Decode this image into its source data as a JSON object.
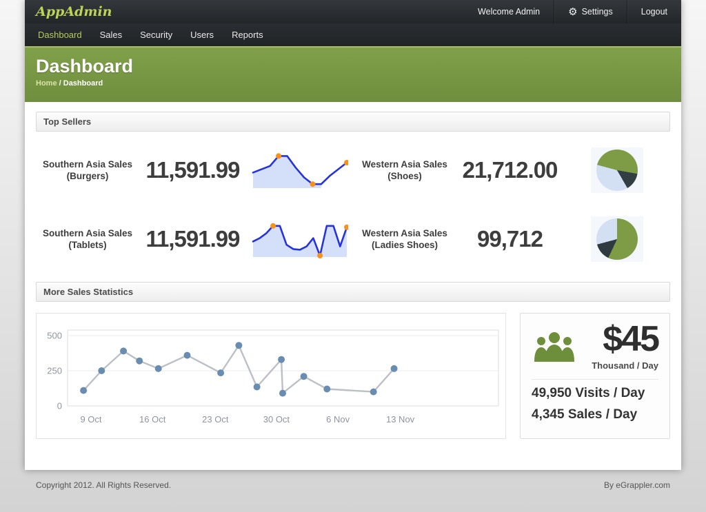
{
  "topbar": {
    "logo": "AppAdmin",
    "welcome": "Welcome Admin",
    "settings": "Settings",
    "logout": "Logout"
  },
  "nav": {
    "items": [
      {
        "label": "Dashboard",
        "active": true
      },
      {
        "label": "Sales",
        "active": false
      },
      {
        "label": "Security",
        "active": false
      },
      {
        "label": "Users",
        "active": false
      },
      {
        "label": "Reports",
        "active": false
      }
    ]
  },
  "hero": {
    "title": "Dashboard",
    "breadcrumb": {
      "home": "Home",
      "separator": "/",
      "current": "Dashboard"
    }
  },
  "sections": {
    "top_sellers": "Top Sellers",
    "more_stats": "More Sales Statistics"
  },
  "stats": [
    {
      "label_line1": "Southern Asia Sales",
      "label_line2": "(Burgers)",
      "value": "11,591.99",
      "chart_id": "burgers_sparkline"
    },
    {
      "label_line1": "Western Asia Sales",
      "label_line2": "(Shoes)",
      "value": "21,712.00",
      "chart_id": "shoes_pie"
    },
    {
      "label_line1": "Southern Asia Sales",
      "label_line2": "(Tablets)",
      "value": "11,591.99",
      "chart_id": "tablets_sparkline"
    },
    {
      "label_line1": "Western Asia Sales",
      "label_line2": "(Ladies Shoes)",
      "value": "99,712",
      "chart_id": "ladies_shoes_pie"
    }
  ],
  "chart_data": [
    {
      "id": "burgers_sparkline",
      "type": "area",
      "title": "Southern Asia Sales (Burgers) trend",
      "values": [
        45,
        55,
        65,
        95,
        95,
        60,
        30,
        10,
        10,
        35,
        55,
        75
      ],
      "dot_indices": [
        3,
        7,
        11
      ],
      "fill_to": 8,
      "line_color": "#2433dd",
      "dot_color": "#f5921e",
      "fill_color": "#cfdcf8"
    },
    {
      "id": "shoes_pie",
      "type": "pie",
      "title": "Western Asia Sales (Shoes) share",
      "from_deg": 285,
      "slices": [
        {
          "name": "green",
          "color": "#7d9c45",
          "deg": 175
        },
        {
          "name": "dark",
          "color": "#333d44",
          "deg": 50
        },
        {
          "name": "light-blue",
          "color": "#d3e0f4",
          "deg": 135
        }
      ]
    },
    {
      "id": "tablets_sparkline",
      "type": "area",
      "title": "Southern Asia Sales (Tablets) trend",
      "values": [
        45,
        55,
        70,
        92,
        92,
        35,
        22,
        20,
        30,
        55,
        2,
        92,
        92,
        30,
        88
      ],
      "dot_indices": [
        3,
        10,
        14
      ],
      "line_color": "#2433dd",
      "dot_color": "#f5921e",
      "fill_color": "#cfdcf8"
    },
    {
      "id": "ladies_shoes_pie",
      "type": "pie",
      "title": "Western Asia Sales (Ladies Shoes) share",
      "from_deg": 0,
      "slices": [
        {
          "name": "green",
          "color": "#7d9c45",
          "deg": 205
        },
        {
          "name": "dark",
          "color": "#2e3940",
          "deg": 50
        },
        {
          "name": "light-blue",
          "color": "#d3e0f4",
          "deg": 105
        }
      ]
    },
    {
      "id": "daily_sales_line",
      "type": "line",
      "title": "More Sales Statistics",
      "x_percent": [
        3.7,
        7.9,
        13.0,
        16.7,
        21.1,
        27.8,
        35.6,
        39.8,
        44.0,
        49.7,
        50.0,
        54.9,
        60.3,
        71.1,
        75.9
      ],
      "values": [
        110,
        250,
        390,
        320,
        265,
        360,
        235,
        430,
        135,
        330,
        90,
        210,
        120,
        100,
        265
      ],
      "ylim": [
        0,
        500
      ],
      "yticks": [
        0,
        250,
        500
      ],
      "xticks": [
        {
          "label": "9 Oct",
          "percent": 3.2
        },
        {
          "label": "16 Oct",
          "percent": 17.5
        },
        {
          "label": "23 Oct",
          "percent": 32.1
        },
        {
          "label": "30 Oct",
          "percent": 46.3
        },
        {
          "label": "6 Nov",
          "percent": 60.6
        },
        {
          "label": "13 Nov",
          "percent": 75.1
        }
      ],
      "grid": true,
      "legend": "none",
      "line_color": "#bcc0c6",
      "dot_color": "#688db1",
      "tick_color": "#8f949c"
    }
  ],
  "side_panel": {
    "amount": "$45",
    "amount_unit": "Thousand / Day",
    "visits": "49,950 Visits / Day",
    "sales": "4,345 Sales / Day"
  },
  "footer": {
    "left": "Copyright 2012. All Rights Reserved.",
    "right": "By eGrappler.com"
  },
  "colors": {
    "accent_green": "#7d9c45",
    "nav_active_green": "#b5cb5e",
    "logo_green": "#bdd356",
    "spark_line_blue": "#2433dd",
    "spark_dot_orange": "#f5921e",
    "chart_dot_steel": "#688db1"
  }
}
